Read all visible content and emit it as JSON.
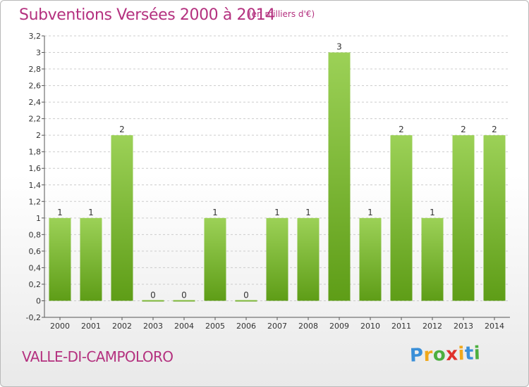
{
  "header": {
    "title": "Subventions Versées 2000 à 2014",
    "unit": "(en milliers d'€)"
  },
  "footer": {
    "commune": "VALLE-DI-CAMPOLORO",
    "logo": "Proxiti"
  },
  "colors": {
    "title": "#b4317f",
    "bar_top": "#9cd157",
    "bar_bottom": "#5e9d17",
    "grid": "#cccccc"
  },
  "chart_data": {
    "type": "bar",
    "title": "Subventions Versées 2000 à 2014",
    "xlabel": "",
    "ylabel": "",
    "categories": [
      "2000",
      "2001",
      "2002",
      "2003",
      "2004",
      "2005",
      "2006",
      "2007",
      "2008",
      "2009",
      "2010",
      "2011",
      "2012",
      "2013",
      "2014"
    ],
    "values": [
      1,
      1,
      2,
      0,
      0,
      1,
      0,
      1,
      1,
      3,
      1,
      2,
      1,
      2,
      2
    ],
    "data_labels": [
      "1",
      "1",
      "2",
      "0",
      "0",
      "1",
      "0",
      "1",
      "1",
      "3",
      "1",
      "2",
      "1",
      "2",
      "2"
    ],
    "ylim": [
      -0.2,
      3.2
    ],
    "y_ticks": [
      "-0,2",
      "0",
      "0,2",
      "0,4",
      "0,6",
      "0,8",
      "1",
      "1,2",
      "1,4",
      "1,6",
      "1,8",
      "2",
      "2,2",
      "2,4",
      "2,6",
      "2,8",
      "3",
      "3,2"
    ],
    "grid": true,
    "grid_style": "horizontal dashed",
    "legend": "none"
  }
}
